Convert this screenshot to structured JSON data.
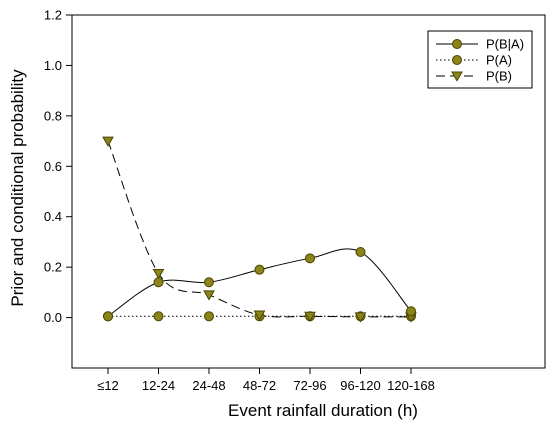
{
  "chart_data": {
    "type": "line",
    "xlabel": "Event rainfall duration (h)",
    "ylabel": "Prior and conditional probability",
    "categories": [
      "≤12",
      "12-24",
      "24-48",
      "48-72",
      "72-96",
      "96-120",
      "120-168"
    ],
    "ylim": [
      -0.2,
      1.2
    ],
    "yticks": [
      "0.0",
      "0.2",
      "0.4",
      "0.6",
      "0.8",
      "1.0",
      "1.2"
    ],
    "grid": false,
    "legend_position": "top-right",
    "series": [
      {
        "name": "P(B|A)",
        "marker": "circle",
        "line": "solid",
        "values": [
          0.005,
          0.14,
          0.14,
          0.19,
          0.235,
          0.26,
          0.025
        ]
      },
      {
        "name": "P(A)",
        "marker": "circle",
        "line": "dotted",
        "values": [
          0.005,
          0.005,
          0.005,
          0.005,
          0.005,
          0.005,
          0.005
        ]
      },
      {
        "name": "P(B)",
        "marker": "triangle-down",
        "line": "dashed",
        "values": [
          0.7,
          0.175,
          0.09,
          0.01,
          0.005,
          0.003,
          0.003
        ]
      }
    ],
    "colors": {
      "marker_fill": "#8c8419",
      "marker_stroke": "#4a4500",
      "line": "#000000"
    }
  }
}
